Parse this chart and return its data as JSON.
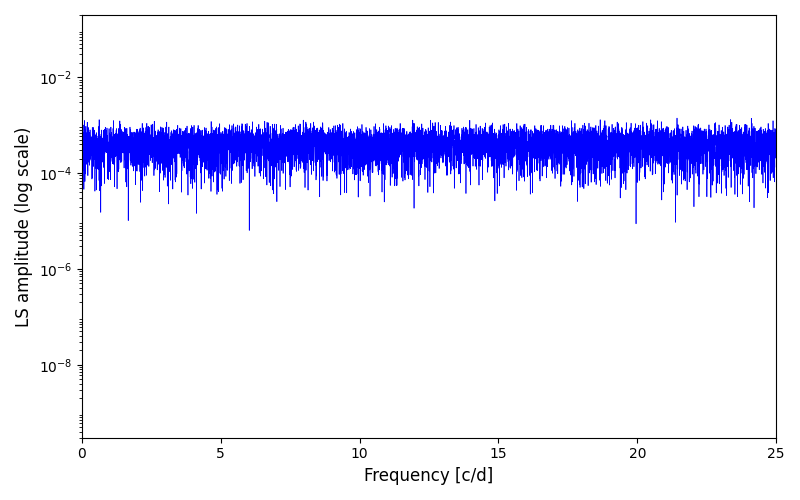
{
  "xlabel": "Frequency [c/d]",
  "ylabel": "LS amplitude (log scale)",
  "xlim": [
    0,
    25
  ],
  "ylim_log": [
    3e-10,
    0.2
  ],
  "line_color": "#0000ff",
  "line_width": 0.5,
  "yscale": "log",
  "yticks": [
    1e-08,
    1e-06,
    0.0001,
    0.01
  ],
  "xticks": [
    0,
    5,
    10,
    15,
    20,
    25
  ],
  "seed": 12345,
  "n_points": 8000,
  "freq_max": 25.0,
  "figsize": [
    8.0,
    5.0
  ],
  "dpi": 100
}
